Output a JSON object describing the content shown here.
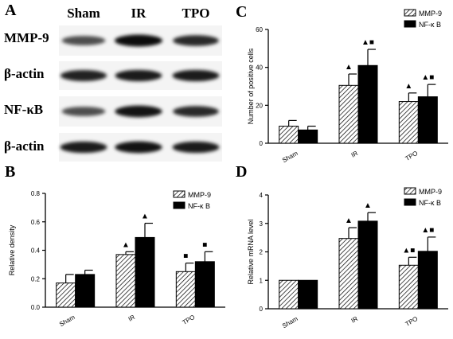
{
  "panels": {
    "a": {
      "letter": "A",
      "lanes": [
        "Sham",
        "IR",
        "TPO"
      ],
      "rows": [
        "MMP-9",
        "β-actin",
        "NF-κB",
        "β-actin"
      ],
      "band_intensity": [
        [
          0.55,
          1.0,
          0.8
        ],
        [
          0.85,
          0.9,
          0.9
        ],
        [
          0.55,
          0.95,
          0.8
        ],
        [
          0.9,
          0.95,
          0.9
        ]
      ]
    },
    "b": {
      "letter": "B"
    },
    "c": {
      "letter": "C"
    },
    "d": {
      "letter": "D"
    }
  },
  "chart_data": [
    {
      "panel": "B",
      "type": "bar",
      "categories": [
        "Sham",
        "IR",
        "TPO"
      ],
      "series": [
        {
          "name": "MMP-9",
          "values": [
            0.17,
            0.37,
            0.25
          ],
          "errors": [
            0.06,
            0.02,
            0.06
          ],
          "pattern": "hatch"
        },
        {
          "name": "NF-κ B",
          "values": [
            0.23,
            0.49,
            0.32
          ],
          "errors": [
            0.03,
            0.1,
            0.07
          ],
          "pattern": "solid"
        }
      ],
      "markers": [
        [
          "",
          ""
        ],
        [
          "▲",
          "▲"
        ],
        [
          "■",
          "■"
        ]
      ],
      "xlabel": "",
      "ylabel": "Relative density",
      "ylim": [
        0,
        0.8
      ],
      "yticks": [
        "0.0",
        "0.2",
        "0.4",
        "0.6",
        "0.8"
      ],
      "legend": "top-right"
    },
    {
      "panel": "C",
      "type": "bar",
      "categories": [
        "Sham",
        "IR",
        "TPO"
      ],
      "series": [
        {
          "name": "MMP-9",
          "values": [
            9,
            30.5,
            22
          ],
          "errors": [
            3,
            6,
            4.5
          ],
          "pattern": "hatch"
        },
        {
          "name": "NF-κ B",
          "values": [
            7,
            41,
            24.5
          ],
          "errors": [
            2,
            8.5,
            6.5
          ],
          "pattern": "solid"
        }
      ],
      "markers": [
        [
          "",
          ""
        ],
        [
          "▲",
          "▲■"
        ],
        [
          "▲",
          "▲■"
        ]
      ],
      "xlabel": "",
      "ylabel": "Number of positive cells",
      "ylim": [
        0,
        60
      ],
      "yticks": [
        "0",
        "20",
        "40",
        "60"
      ],
      "legend": "top-right"
    },
    {
      "panel": "D",
      "type": "bar",
      "categories": [
        "Sham",
        "IR",
        "TPO"
      ],
      "series": [
        {
          "name": "MMP-9",
          "values": [
            1.0,
            2.47,
            1.53
          ],
          "errors": [
            0.0,
            0.38,
            0.28
          ],
          "pattern": "hatch"
        },
        {
          "name": "NF-κ B",
          "values": [
            1.0,
            3.08,
            2.02
          ],
          "errors": [
            0.0,
            0.3,
            0.5
          ],
          "pattern": "solid"
        }
      ],
      "markers": [
        [
          "",
          ""
        ],
        [
          "▲",
          "▲"
        ],
        [
          "▲■",
          "▲■"
        ]
      ],
      "xlabel": "",
      "ylabel": "Relative mRNA level",
      "ylim": [
        0,
        4
      ],
      "yticks": [
        "0",
        "1",
        "2",
        "3",
        "4"
      ],
      "legend": "top-right"
    }
  ]
}
